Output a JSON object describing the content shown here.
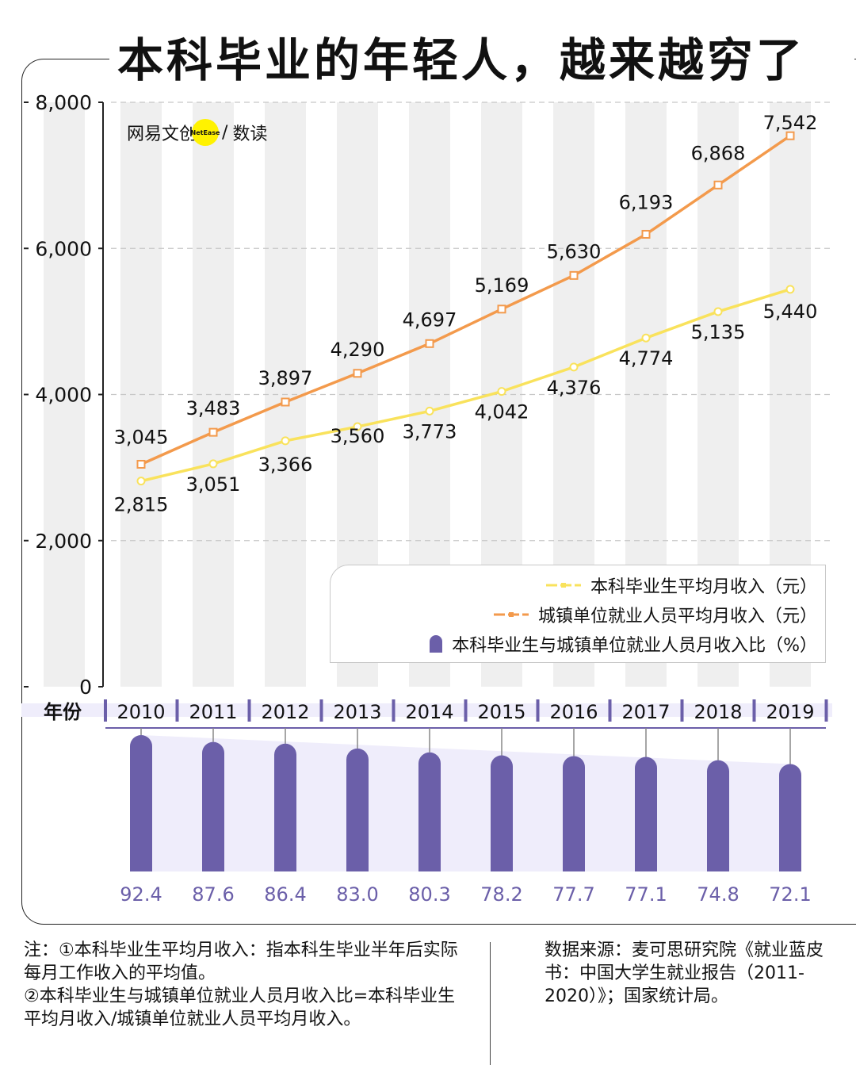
{
  "title": "本科毕业的年轻人，越来越穷了",
  "logo": {
    "brand": "网易文创",
    "badge": "NetEase",
    "slash": "/",
    "column": "数读"
  },
  "legend": [
    {
      "label": "本科毕业生平均月收入（元）",
      "color": "#f9e25c",
      "shape": "line"
    },
    {
      "label": "城镇单位就业人员平均月收入（元）",
      "color": "#f39a4c",
      "shape": "line"
    },
    {
      "label": "本科毕业生与城镇单位就业人员月收入比（%）",
      "color": "#6b5fa9",
      "shape": "bar"
    }
  ],
  "colors": {
    "graduate": "#f9e25c",
    "urban": "#f39a4c",
    "ratio": "#6b5fa9",
    "band": "#efefef",
    "yearStrip": "#efedfb"
  },
  "chart_data": {
    "type": "line",
    "title": "本科毕业的年轻人，越来越穷了",
    "xlabel": "年份",
    "ylabel": "",
    "ylim": [
      0,
      8000
    ],
    "yticks": [
      "0",
      "2,000",
      "4,000",
      "6,000",
      "8,000"
    ],
    "categories": [
      "2010",
      "2011",
      "2012",
      "2013",
      "2014",
      "2015",
      "2016",
      "2017",
      "2018",
      "2019"
    ],
    "series": [
      {
        "name": "本科毕业生平均月收入（元）",
        "values": [
          2815,
          3051,
          3366,
          3560,
          3773,
          4042,
          4376,
          4774,
          5135,
          5440
        ],
        "labels": [
          "2,815",
          "3,051",
          "3,366",
          "3,560",
          "3,773",
          "4,042",
          "4,376",
          "4,774",
          "5,135",
          "5,440"
        ]
      },
      {
        "name": "城镇单位就业人员平均月收入（元）",
        "values": [
          3045,
          3483,
          3897,
          4290,
          4697,
          5169,
          5630,
          6193,
          6868,
          7542
        ],
        "labels": [
          "3,045",
          "3,483",
          "3,897",
          "4,290",
          "4,697",
          "5,169",
          "5,630",
          "6,193",
          "6,868",
          "7,542"
        ]
      },
      {
        "name": "本科毕业生与城镇单位就业人员月收入比（%）",
        "values": [
          92.4,
          87.6,
          86.4,
          83.0,
          80.3,
          78.2,
          77.7,
          77.1,
          74.8,
          72.1
        ],
        "labels": [
          "92.4",
          "87.6",
          "86.4",
          "83.0",
          "80.3",
          "78.2",
          "77.7",
          "77.1",
          "74.8",
          "72.1"
        ]
      }
    ]
  },
  "notes": {
    "prefix": "注：",
    "note1": "①本科毕业生平均月收入：指本科生毕业半年后实际每月工作收入的平均值。",
    "note2": "②本科毕业生与城镇单位就业人员月收入比=本科毕业生平均月收入/城镇单位就业人员平均月收入。"
  },
  "source": "数据来源：麦可思研究院《就业蓝皮书：中国大学生就业报告（2011-2020）》；国家统计局。"
}
